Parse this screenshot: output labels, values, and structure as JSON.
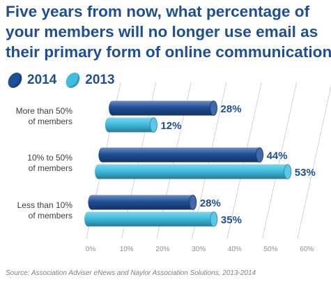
{
  "title_lines": [
    "Five years from now, what percentage of",
    "your members will no longer use email as",
    "their primary form of online communication?"
  ],
  "legend": [
    {
      "label": "2014",
      "color": "#1e4f96"
    },
    {
      "label": "2013",
      "color": "#3fbde0"
    }
  ],
  "colors": {
    "series_2014": "#1e4f96",
    "series_2013": "#3fbde0",
    "text_dark": "#1e4f96",
    "category_text": "#3d3d3d",
    "tick_text": "#8b8f94",
    "grid": "#cfd3d8"
  },
  "chart_data": {
    "type": "bar",
    "orientation": "horizontal",
    "categories": [
      [
        "More than 50%",
        "of members"
      ],
      [
        "10% to 50%",
        "of members"
      ],
      [
        "Less than 10%",
        "of members"
      ]
    ],
    "series": [
      {
        "name": "2014",
        "values": [
          28,
          44,
          28
        ],
        "labels": [
          "28%",
          "44%",
          "28%"
        ]
      },
      {
        "name": "2013",
        "values": [
          12,
          53,
          35
        ],
        "labels": [
          "12%",
          "53%",
          "35%"
        ]
      }
    ],
    "x_ticks": [
      "0%",
      "10%",
      "20%",
      "30%",
      "40%",
      "50%",
      "60%"
    ],
    "xlim": [
      0,
      60
    ],
    "grid": true,
    "legend_position": "top-left"
  },
  "source": "Source: Association Adviser eNews and Naylor Association Solutions, 2013-2014"
}
